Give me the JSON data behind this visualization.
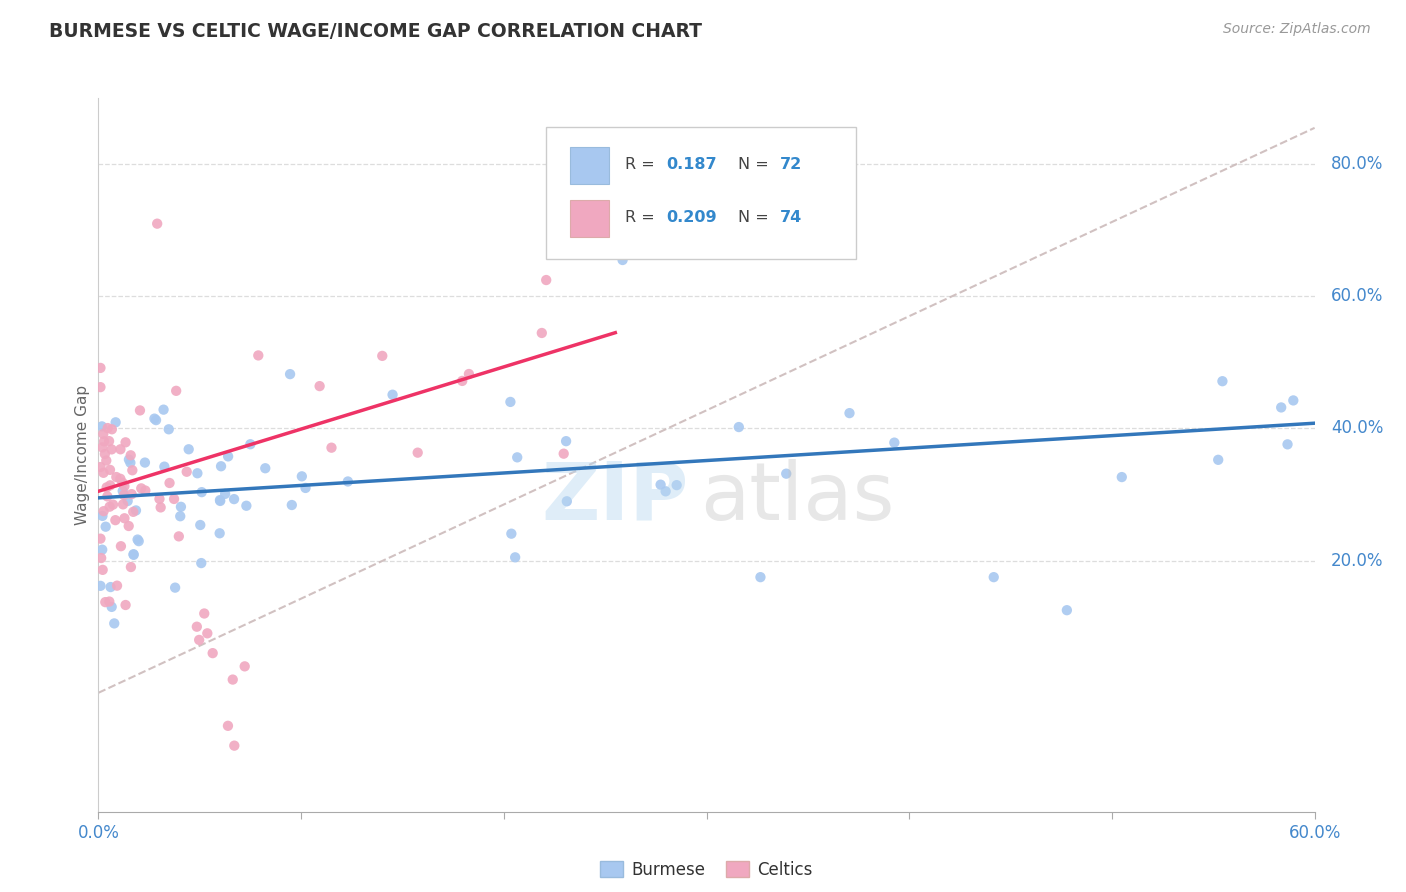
{
  "title": "BURMESE VS CELTIC WAGE/INCOME GAP CORRELATION CHART",
  "source": "Source: ZipAtlas.com",
  "ylabel": "Wage/Income Gap",
  "legend_label1": "Burmese",
  "legend_label2": "Celtics",
  "legend_R1": "0.187",
  "legend_N1": "72",
  "legend_R2": "0.209",
  "legend_N2": "74",
  "burmese_color": "#a8c8f0",
  "celtics_color": "#f0a8c0",
  "burmese_line_color": "#3377bb",
  "celtics_line_color": "#ee3366",
  "ref_line_color": "#ccbbbb",
  "background_color": "#ffffff",
  "xmin": 0.0,
  "xmax": 0.6,
  "ymin": -0.18,
  "ymax": 0.9,
  "burmese_trend_x": [
    0.0,
    0.6
  ],
  "burmese_trend_y": [
    0.295,
    0.408
  ],
  "celtics_trend_x": [
    0.0,
    0.255
  ],
  "celtics_trend_y": [
    0.305,
    0.545
  ],
  "ref_line_x": [
    0.0,
    0.6
  ],
  "ref_line_y": [
    0.0,
    0.855
  ]
}
